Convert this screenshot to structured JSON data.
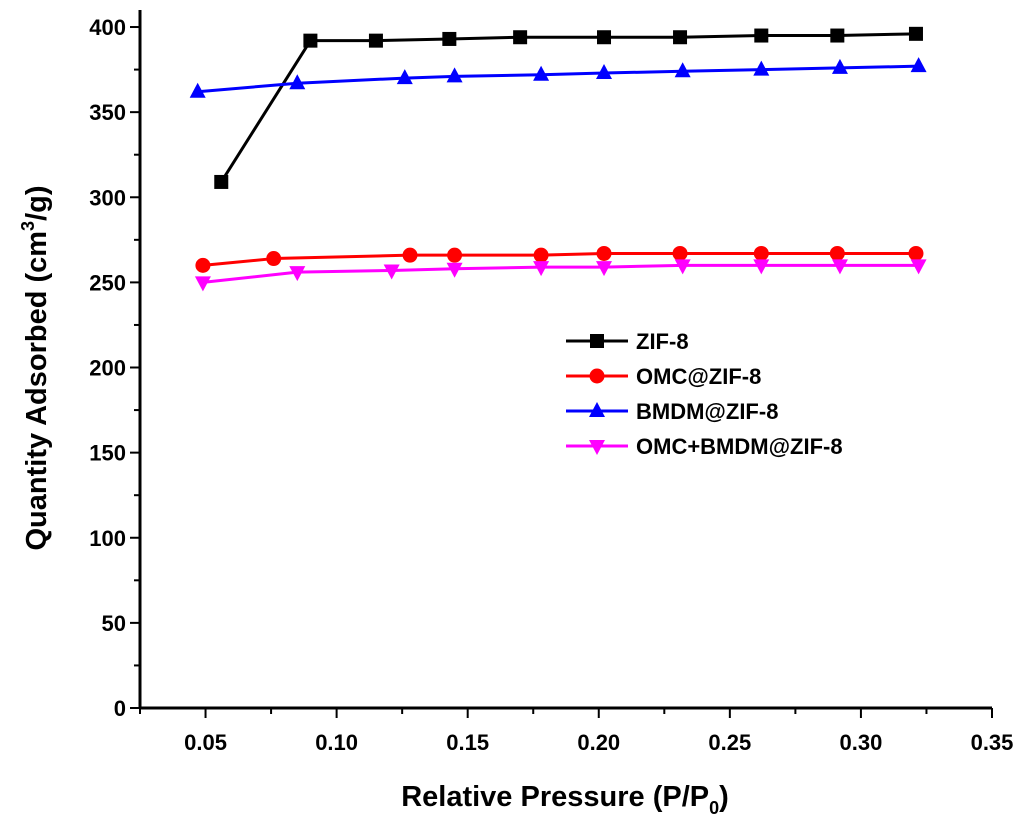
{
  "chart_data": {
    "type": "line",
    "title": "",
    "xlabel": "Relative Pressure (P/P",
    "xlabel_sub": "0",
    "xlabel_end": ")",
    "ylabel": "Quantity Adsorbed (cm",
    "ylabel_sup": "3",
    "ylabel_end": "/g)",
    "xlim": [
      0.025,
      0.35
    ],
    "ylim": [
      0,
      410
    ],
    "x_ticks": [
      "0.05",
      "0.10",
      "0.15",
      "0.20",
      "0.25",
      "0.30",
      "0.35"
    ],
    "y_ticks": [
      "0",
      "50",
      "100",
      "150",
      "200",
      "250",
      "300",
      "350",
      "400"
    ],
    "grid": false,
    "legend_position": "center-right",
    "series": [
      {
        "name": "ZIF-8",
        "color": "#000000",
        "marker": "square",
        "x": [
          0.056,
          0.09,
          0.115,
          0.143,
          0.17,
          0.202,
          0.231,
          0.262,
          0.291,
          0.321
        ],
        "y": [
          309,
          392,
          392,
          393,
          394,
          394,
          394,
          395,
          395,
          396
        ]
      },
      {
        "name": "OMC@ZIF-8",
        "color": "#ff0000",
        "marker": "circle",
        "x": [
          0.049,
          0.076,
          0.128,
          0.145,
          0.178,
          0.202,
          0.231,
          0.262,
          0.291,
          0.321
        ],
        "y": [
          260,
          264,
          266,
          266,
          266,
          267,
          267,
          267,
          267,
          267
        ]
      },
      {
        "name": "BMDM@ZIF-8",
        "color": "#0000ff",
        "marker": "triangle-up",
        "x": [
          0.047,
          0.085,
          0.126,
          0.145,
          0.178,
          0.202,
          0.232,
          0.262,
          0.292,
          0.322
        ],
        "y": [
          362,
          367,
          370,
          371,
          372,
          373,
          374,
          375,
          376,
          377
        ]
      },
      {
        "name": "OMC+BMDM@ZIF-8",
        "color": "#ff00ff",
        "marker": "triangle-down",
        "x": [
          0.049,
          0.085,
          0.121,
          0.145,
          0.178,
          0.202,
          0.232,
          0.262,
          0.292,
          0.322
        ],
        "y": [
          250,
          256,
          257,
          258,
          259,
          259,
          260,
          260,
          260,
          260
        ]
      }
    ]
  }
}
